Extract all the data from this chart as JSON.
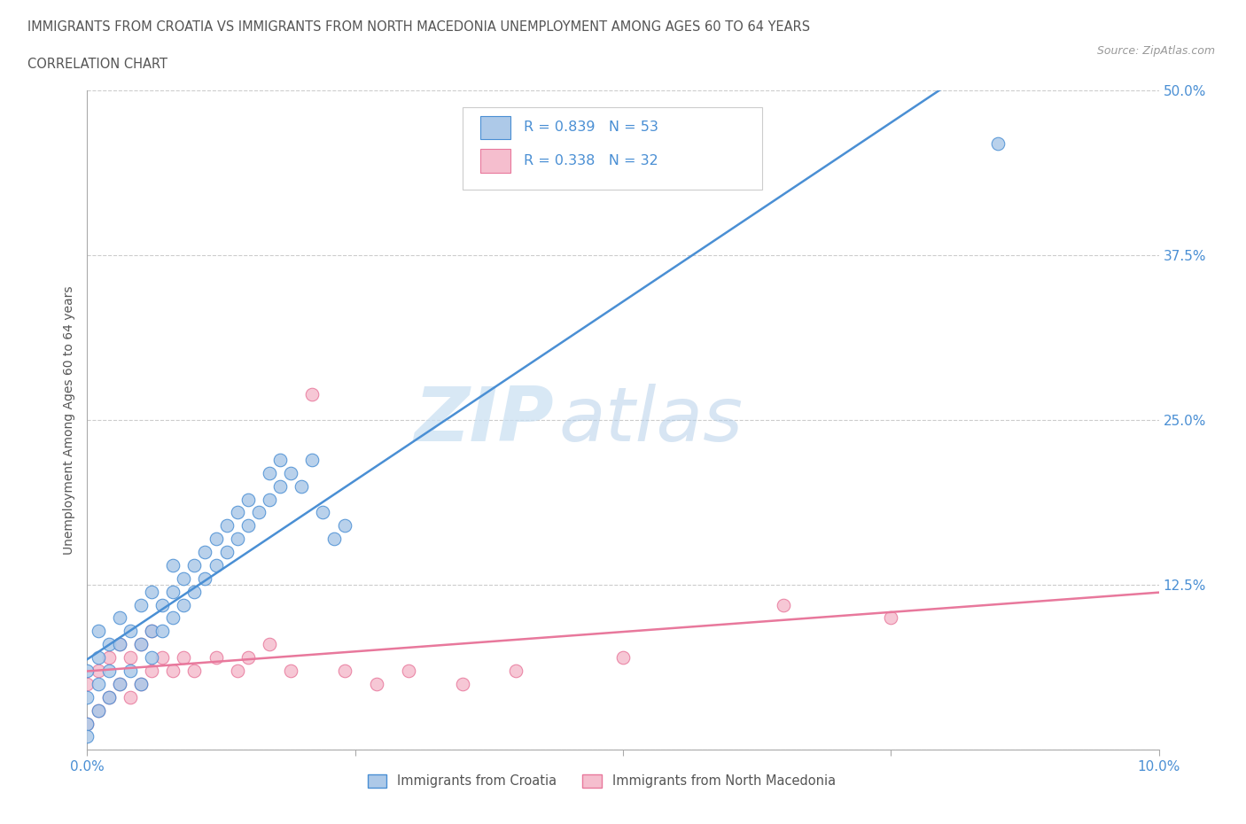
{
  "title_line1": "IMMIGRANTS FROM CROATIA VS IMMIGRANTS FROM NORTH MACEDONIA UNEMPLOYMENT AMONG AGES 60 TO 64 YEARS",
  "title_line2": "CORRELATION CHART",
  "source": "Source: ZipAtlas.com",
  "ylabel": "Unemployment Among Ages 60 to 64 years",
  "xlim": [
    0,
    0.1
  ],
  "ylim": [
    0,
    0.5
  ],
  "xticks": [
    0.0,
    0.025,
    0.05,
    0.075,
    0.1
  ],
  "xtick_labels": [
    "0.0%",
    "",
    "",
    "",
    "10.0%"
  ],
  "ytick_positions": [
    0.0,
    0.125,
    0.25,
    0.375,
    0.5
  ],
  "ytick_labels": [
    "",
    "12.5%",
    "25.0%",
    "37.5%",
    "50.0%"
  ],
  "croatia_R": 0.839,
  "croatia_N": 53,
  "macedonia_R": 0.338,
  "macedonia_N": 32,
  "croatia_color": "#adc9e8",
  "croatia_line_color": "#4a8fd4",
  "macedonia_color": "#f5bece",
  "macedonia_line_color": "#e8789c",
  "croatia_scatter_x": [
    0.0,
    0.0,
    0.0,
    0.001,
    0.001,
    0.001,
    0.001,
    0.002,
    0.002,
    0.002,
    0.003,
    0.003,
    0.003,
    0.004,
    0.004,
    0.005,
    0.005,
    0.005,
    0.006,
    0.006,
    0.006,
    0.007,
    0.007,
    0.008,
    0.008,
    0.008,
    0.009,
    0.009,
    0.01,
    0.01,
    0.011,
    0.011,
    0.012,
    0.012,
    0.013,
    0.013,
    0.014,
    0.014,
    0.015,
    0.015,
    0.016,
    0.017,
    0.017,
    0.018,
    0.018,
    0.019,
    0.02,
    0.021,
    0.022,
    0.023,
    0.024,
    0.085,
    0.0
  ],
  "croatia_scatter_y": [
    0.02,
    0.04,
    0.06,
    0.03,
    0.05,
    0.07,
    0.09,
    0.04,
    0.06,
    0.08,
    0.05,
    0.08,
    0.1,
    0.06,
    0.09,
    0.05,
    0.08,
    0.11,
    0.07,
    0.09,
    0.12,
    0.09,
    0.11,
    0.1,
    0.12,
    0.14,
    0.11,
    0.13,
    0.12,
    0.14,
    0.13,
    0.15,
    0.14,
    0.16,
    0.15,
    0.17,
    0.16,
    0.18,
    0.17,
    0.19,
    0.18,
    0.19,
    0.21,
    0.2,
    0.22,
    0.21,
    0.2,
    0.22,
    0.18,
    0.16,
    0.17,
    0.46,
    0.01
  ],
  "macedonia_scatter_x": [
    0.0,
    0.0,
    0.001,
    0.001,
    0.002,
    0.002,
    0.003,
    0.003,
    0.004,
    0.004,
    0.005,
    0.005,
    0.006,
    0.006,
    0.007,
    0.008,
    0.009,
    0.01,
    0.012,
    0.014,
    0.015,
    0.017,
    0.019,
    0.021,
    0.024,
    0.027,
    0.03,
    0.035,
    0.04,
    0.05,
    0.065,
    0.075
  ],
  "macedonia_scatter_y": [
    0.02,
    0.05,
    0.03,
    0.06,
    0.04,
    0.07,
    0.05,
    0.08,
    0.04,
    0.07,
    0.05,
    0.08,
    0.06,
    0.09,
    0.07,
    0.06,
    0.07,
    0.06,
    0.07,
    0.06,
    0.07,
    0.08,
    0.06,
    0.27,
    0.06,
    0.05,
    0.06,
    0.05,
    0.06,
    0.07,
    0.11,
    0.1
  ],
  "watermark_zip": "ZIP",
  "watermark_atlas": "atlas",
  "background_color": "#ffffff",
  "grid_color": "#cccccc",
  "title_color": "#555555",
  "axis_label_color": "#4a8fd4",
  "legend_label_croatia": "Immigrants from Croatia",
  "legend_label_macedonia": "Immigrants from North Macedonia"
}
